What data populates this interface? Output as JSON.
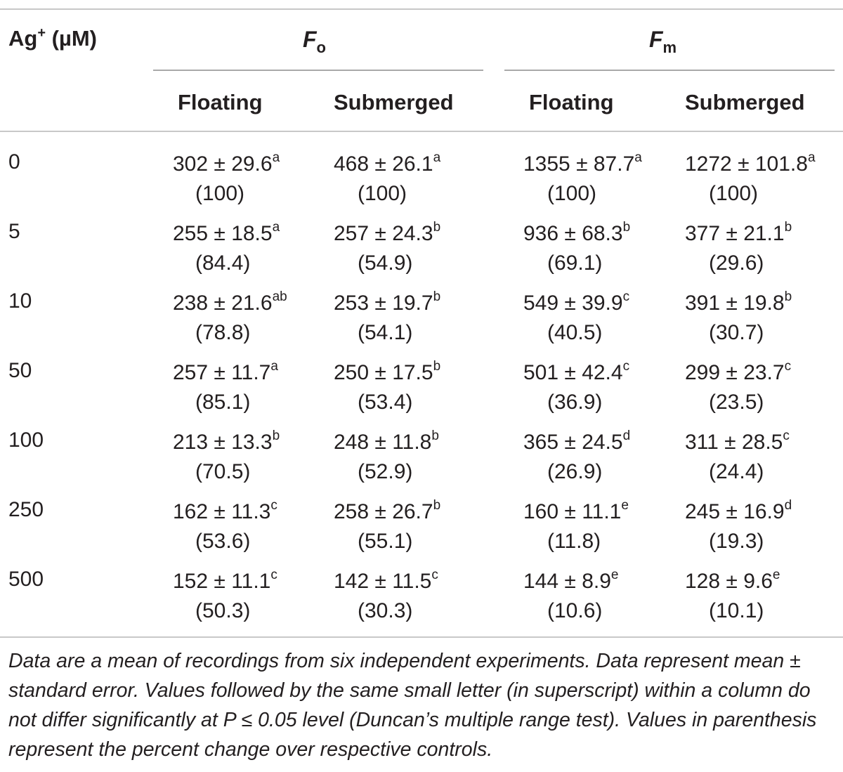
{
  "header": {
    "conc_label": "Ag",
    "conc_sup": "+",
    "conc_unit": " (µM)",
    "group_fo_main": "F",
    "group_fo_sub": "o",
    "group_fm_main": "F",
    "group_fm_sub": "m",
    "subcols": [
      "Floating",
      "Submerged",
      "Floating",
      "Submerged"
    ]
  },
  "rows": [
    {
      "conc": "0",
      "cells": [
        {
          "mean": "302 ± 29.6",
          "sig": "a",
          "pct": "(100)"
        },
        {
          "mean": "468 ± 26.1",
          "sig": "a",
          "pct": "(100)"
        },
        {
          "mean": "1355 ± 87.7",
          "sig": "a",
          "pct": "(100)"
        },
        {
          "mean": "1272 ± 101.8",
          "sig": "a",
          "pct": "(100)"
        }
      ]
    },
    {
      "conc": "5",
      "cells": [
        {
          "mean": "255 ± 18.5",
          "sig": "a",
          "pct": "(84.4)"
        },
        {
          "mean": "257 ± 24.3",
          "sig": "b",
          "pct": "(54.9)"
        },
        {
          "mean": "936 ± 68.3",
          "sig": "b",
          "pct": "(69.1)"
        },
        {
          "mean": "377 ± 21.1",
          "sig": "b",
          "pct": "(29.6)"
        }
      ]
    },
    {
      "conc": "10",
      "cells": [
        {
          "mean": "238 ± 21.6",
          "sig": "ab",
          "pct": "(78.8)"
        },
        {
          "mean": "253 ± 19.7",
          "sig": "b",
          "pct": "(54.1)"
        },
        {
          "mean": "549 ± 39.9",
          "sig": "c",
          "pct": "(40.5)"
        },
        {
          "mean": "391 ± 19.8",
          "sig": "b",
          "pct": "(30.7)"
        }
      ]
    },
    {
      "conc": "50",
      "cells": [
        {
          "mean": "257 ± 11.7",
          "sig": "a",
          "pct": "(85.1)"
        },
        {
          "mean": "250 ± 17.5",
          "sig": "b",
          "pct": "(53.4)"
        },
        {
          "mean": "501 ± 42.4",
          "sig": "c",
          "pct": "(36.9)"
        },
        {
          "mean": "299 ± 23.7",
          "sig": "c",
          "pct": "(23.5)"
        }
      ]
    },
    {
      "conc": "100",
      "cells": [
        {
          "mean": "213 ± 13.3",
          "sig": "b",
          "pct": "(70.5)"
        },
        {
          "mean": "248 ± 11.8",
          "sig": "b",
          "pct": "(52.9)"
        },
        {
          "mean": "365 ± 24.5",
          "sig": "d",
          "pct": "(26.9)"
        },
        {
          "mean": "311 ± 28.5",
          "sig": "c",
          "pct": "(24.4)"
        }
      ]
    },
    {
      "conc": "250",
      "cells": [
        {
          "mean": "162 ± 11.3",
          "sig": "c",
          "pct": "(53.6)"
        },
        {
          "mean": "258 ± 26.7",
          "sig": "b",
          "pct": "(55.1)"
        },
        {
          "mean": "160 ± 11.1",
          "sig": "e",
          "pct": "(11.8)"
        },
        {
          "mean": "245 ± 16.9",
          "sig": "d",
          "pct": "(19.3)"
        }
      ]
    },
    {
      "conc": "500",
      "cells": [
        {
          "mean": "152 ± 11.1",
          "sig": "c",
          "pct": "(50.3)"
        },
        {
          "mean": "142 ± 11.5",
          "sig": "c",
          "pct": "(30.3)"
        },
        {
          "mean": "144 ± 8.9",
          "sig": "e",
          "pct": "(10.6)"
        },
        {
          "mean": "128 ± 9.6",
          "sig": "e",
          "pct": "(10.1)"
        }
      ]
    }
  ],
  "footnote": "Data are a mean of recordings from six independent experiments. Data represent mean ± standard error. Values followed by the same small letter (in superscript) within a column do not differ significantly at P ≤ 0.05 level (Duncan’s multiple range test). Values in parenthesis represent the percent change over respective controls."
}
